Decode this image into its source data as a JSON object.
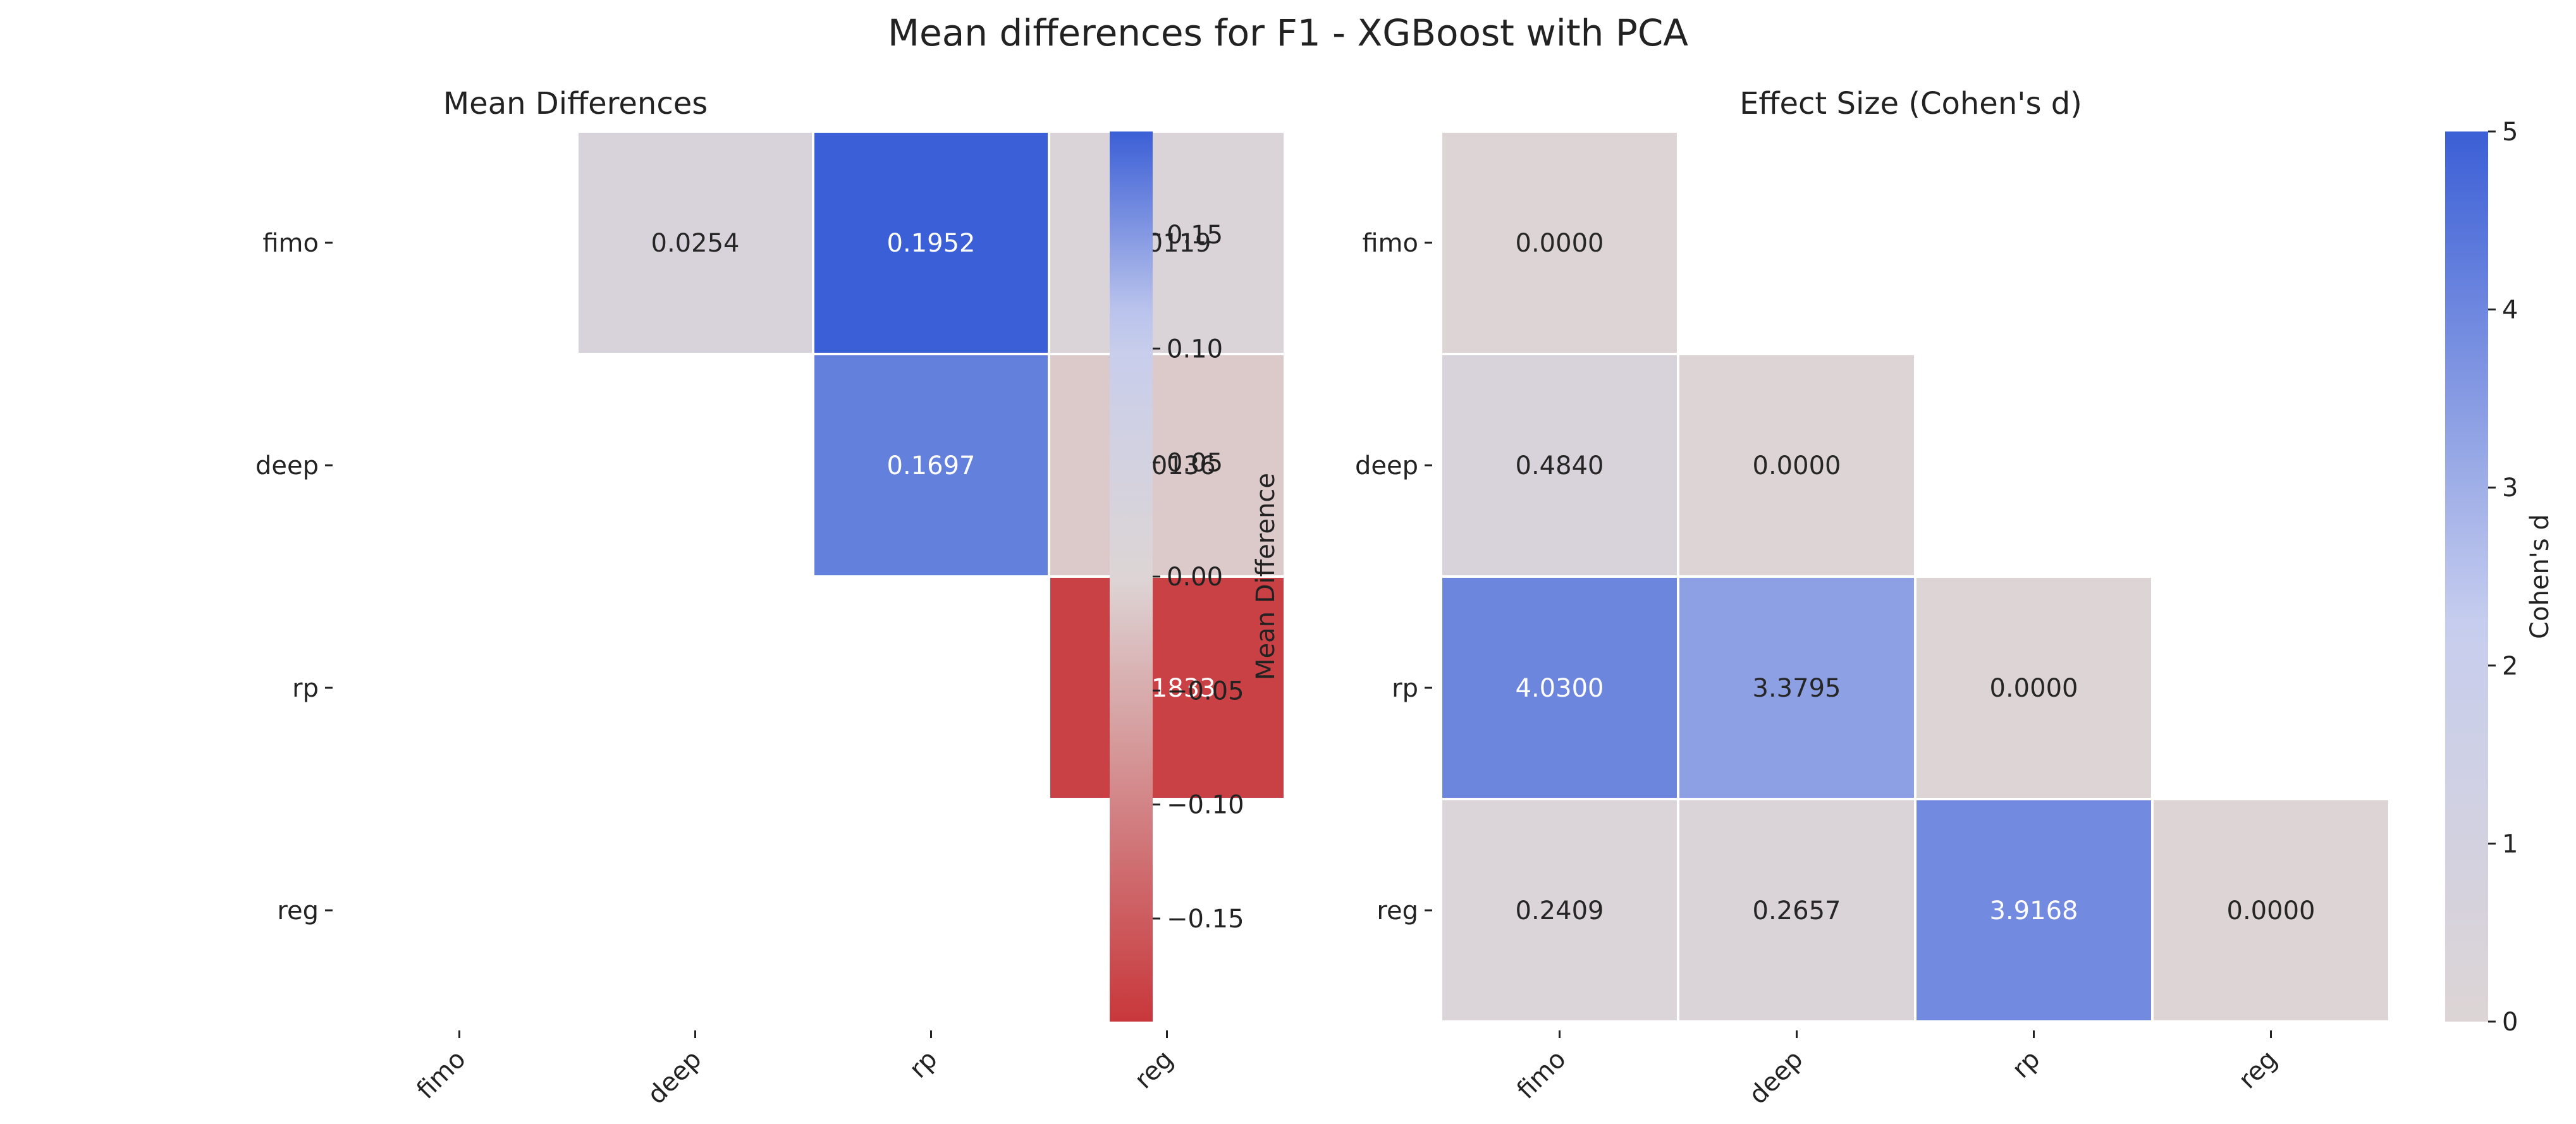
{
  "figure": {
    "title": "Mean differences for F1 - XGBoost with PCA"
  },
  "colors": {
    "low": "#c8373b",
    "mid": "#ddd5d5",
    "midBlue": "#c6cdee",
    "high": "#3b5fd6",
    "cell_border": "#ffffff",
    "text_dark": "#262626",
    "text_light": "#ffffff"
  },
  "chart_data": [
    {
      "type": "heatmap",
      "title": "Mean Differences",
      "rows": [
        "fimo",
        "deep",
        "rp",
        "reg"
      ],
      "cols": [
        "fimo",
        "deep",
        "rp",
        "reg"
      ],
      "values": [
        [
          null,
          0.0254,
          0.1952,
          0.0119
        ],
        [
          null,
          null,
          0.1697,
          -0.0136
        ],
        [
          null,
          null,
          null,
          -0.1833
        ],
        [
          null,
          null,
          null,
          null
        ]
      ],
      "labels": [
        [
          null,
          "0.0254",
          "0.1952",
          "0.0119"
        ],
        [
          null,
          null,
          "0.1697",
          "-0.0136"
        ],
        [
          null,
          null,
          null,
          "-0.1833"
        ],
        [
          null,
          null,
          null,
          null
        ]
      ],
      "mask": "lower-triangle-and-diagonal",
      "colormap": "diverging red-to-blue (coolwarm_r)",
      "vmin": -0.1952,
      "vmax": 0.1952,
      "colorbar": {
        "label": "Mean Difference",
        "ticks": [
          0.15,
          0.1,
          0.05,
          0.0,
          -0.05,
          -0.1,
          -0.15
        ],
        "tick_labels": [
          "0.15",
          "0.10",
          "0.05",
          "0.00",
          "−0.05",
          "−0.10",
          "−0.15"
        ]
      }
    },
    {
      "type": "heatmap",
      "title": "Effect Size (Cohen's d)",
      "rows": [
        "fimo",
        "deep",
        "rp",
        "reg"
      ],
      "cols": [
        "fimo",
        "deep",
        "rp",
        "reg"
      ],
      "values": [
        [
          0.0,
          null,
          null,
          null
        ],
        [
          0.484,
          0.0,
          null,
          null
        ],
        [
          4.03,
          3.3795,
          0.0,
          null
        ],
        [
          0.2409,
          0.2657,
          3.9168,
          0.0
        ]
      ],
      "labels": [
        [
          "0.0000",
          null,
          null,
          null
        ],
        [
          "0.4840",
          "0.0000",
          null,
          null
        ],
        [
          "4.0300",
          "3.3795",
          "0.0000",
          null
        ],
        [
          "0.2409",
          "0.2657",
          "3.9168",
          "0.0000"
        ]
      ],
      "mask": "upper-triangle",
      "colormap": "sequential neutral-to-blue",
      "vmin": 0,
      "vmax": 5,
      "colorbar": {
        "label": "Cohen's d",
        "ticks": [
          5,
          4,
          3,
          2,
          1,
          0
        ],
        "tick_labels": [
          "5",
          "4",
          "3",
          "2",
          "1",
          "0"
        ]
      }
    }
  ]
}
